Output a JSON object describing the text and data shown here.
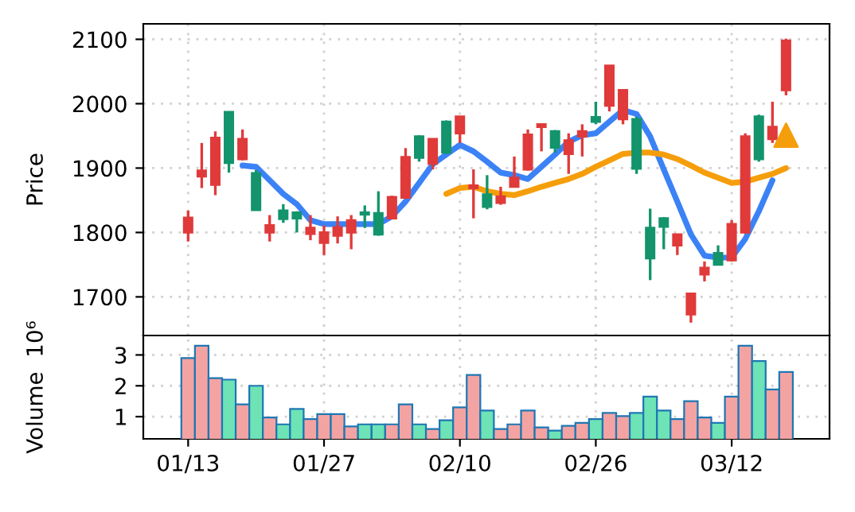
{
  "chart_data": [
    {
      "type": "candlestick",
      "ylabel": "Price",
      "categories": [
        null,
        null,
        null,
        null,
        null,
        null,
        null,
        null,
        null,
        null,
        null,
        null,
        null,
        null,
        null,
        null,
        null,
        null,
        null,
        null,
        null,
        null,
        null,
        null,
        null,
        null,
        null,
        null,
        null,
        null,
        null,
        null,
        null,
        null,
        null,
        null,
        null,
        null,
        null,
        null,
        null,
        null,
        null,
        null,
        null
      ],
      "ohlc": [
        [
          1800,
          1834,
          1786,
          1823
        ],
        [
          1887,
          1939,
          1869,
          1896
        ],
        [
          1874,
          1957,
          1858,
          1947
        ],
        [
          1987,
          1987,
          1893,
          1908
        ],
        [
          1914,
          1960,
          1912,
          1945
        ],
        [
          1892,
          1897,
          1835,
          1835
        ],
        [
          1800,
          1827,
          1786,
          1811
        ],
        [
          1834,
          1844,
          1815,
          1821
        ],
        [
          1831,
          1833,
          1800,
          1822
        ],
        [
          1798,
          1827,
          1788,
          1807
        ],
        [
          1784,
          1811,
          1765,
          1800
        ],
        [
          1795,
          1825,
          1783,
          1808
        ],
        [
          1800,
          1827,
          1774,
          1819
        ],
        [
          1831,
          1842,
          1807,
          1828
        ],
        [
          1830,
          1864,
          1795,
          1797
        ],
        [
          1822,
          1857,
          1822,
          1855
        ],
        [
          1854,
          1931,
          1852,
          1917
        ],
        [
          1949,
          1951,
          1910,
          1916
        ],
        [
          1907,
          1945,
          1898,
          1945
        ],
        [
          1972,
          1974,
          1922,
          1924
        ],
        [
          1954,
          1980,
          1939,
          1980
        ],
        [
          1869,
          1898,
          1822,
          1873
        ],
        [
          1859,
          1889,
          1836,
          1840
        ],
        [
          1846,
          1871,
          1843,
          1856
        ],
        [
          1871,
          1918,
          1871,
          1885
        ],
        [
          1898,
          1960,
          1896,
          1952
        ],
        [
          1964,
          1968,
          1926,
          1968
        ],
        [
          1957,
          1959,
          1924,
          1932
        ],
        [
          1922,
          1954,
          1891,
          1943
        ],
        [
          1949,
          1968,
          1918,
          1957
        ],
        [
          1979,
          2003,
          1968,
          1972
        ],
        [
          1997,
          2059,
          1988,
          2059
        ],
        [
          1976,
          2021,
          1968,
          2021
        ],
        [
          1976,
          1980,
          1891,
          1899
        ],
        [
          1807,
          1837,
          1726,
          1760
        ],
        [
          1822,
          1824,
          1774,
          1809
        ],
        [
          1780,
          1798,
          1765,
          1797
        ],
        [
          1673,
          1705,
          1660,
          1705
        ],
        [
          1735,
          1755,
          1724,
          1745
        ],
        [
          1768,
          1780,
          1749,
          1750
        ],
        [
          1757,
          1819,
          1755,
          1813
        ],
        [
          1800,
          1954,
          1798,
          1949
        ],
        [
          1980,
          1983,
          1910,
          1914
        ],
        [
          1945,
          2003,
          1939,
          1964
        ],
        [
          2021,
          2101,
          2013,
          2098
        ]
      ],
      "colors": [
        "#e03a3a",
        "#e03a3a",
        "#e03a3a",
        "#13946c",
        "#e03a3a",
        "#13946c",
        "#e03a3a",
        "#13946c",
        "#13946c",
        "#e03a3a",
        "#e03a3a",
        "#e03a3a",
        "#e03a3a",
        "#13946c",
        "#13946c",
        "#e03a3a",
        "#e03a3a",
        "#13946c",
        "#e03a3a",
        "#13946c",
        "#e03a3a",
        "#e03a3a",
        "#13946c",
        "#e03a3a",
        "#e03a3a",
        "#e03a3a",
        "#e03a3a",
        "#13946c",
        "#e03a3a",
        "#e03a3a",
        "#13946c",
        "#e03a3a",
        "#e03a3a",
        "#13946c",
        "#13946c",
        "#13946c",
        "#e03a3a",
        "#e03a3a",
        "#e03a3a",
        "#13946c",
        "#e03a3a",
        "#e03a3a",
        "#13946c",
        "#e03a3a",
        "#e03a3a"
      ],
      "series": [
        {
          "type": "line",
          "color": "#3b82f6",
          "values": [
            null,
            null,
            null,
            null,
            1904,
            1902,
            1881,
            1860,
            1844,
            1819,
            1813,
            1813,
            1813,
            1813,
            1813,
            1825,
            1848,
            1877,
            1906,
            1921,
            1936,
            1926,
            1910,
            1893,
            1889,
            1883,
            1902,
            1921,
            1941,
            1951,
            1954,
            1972,
            1990,
            1984,
            1949,
            1898,
            1848,
            1797,
            1764,
            1761,
            1761,
            1790,
            1833,
            1881,
            null
          ]
        },
        {
          "type": "line",
          "color": "#f59e0b",
          "values": [
            null,
            null,
            null,
            null,
            null,
            null,
            null,
            null,
            null,
            null,
            null,
            null,
            null,
            null,
            null,
            null,
            null,
            null,
            null,
            1860,
            1869,
            1871,
            1864,
            1860,
            1858,
            1864,
            1871,
            1877,
            1883,
            1891,
            1902,
            1912,
            1922,
            1924,
            1924,
            1921,
            1914,
            1904,
            1893,
            1885,
            1877,
            1879,
            1885,
            1891,
            1900
          ]
        },
        {
          "type": "scatter",
          "color": "#f59e0b",
          "marker": "triangle",
          "values": [
            null,
            null,
            null,
            null,
            null,
            null,
            null,
            null,
            null,
            null,
            null,
            null,
            null,
            null,
            null,
            null,
            null,
            null,
            null,
            null,
            null,
            null,
            null,
            null,
            null,
            null,
            null,
            null,
            null,
            null,
            null,
            null,
            null,
            null,
            null,
            null,
            null,
            null,
            null,
            null,
            null,
            null,
            null,
            null,
            1951
          ]
        }
      ],
      "ylim": [
        1640,
        2124
      ],
      "yticks": [
        1700,
        1800,
        1900,
        2000,
        2100
      ],
      "grid": true,
      "tick_labels": "y"
    },
    {
      "type": "bar",
      "ylabel": "Volume  10⁶",
      "categories": [
        "01/13",
        null,
        null,
        null,
        null,
        null,
        null,
        null,
        null,
        null,
        "01/27",
        null,
        null,
        null,
        null,
        null,
        null,
        null,
        null,
        null,
        "02/10",
        null,
        null,
        null,
        null,
        null,
        null,
        null,
        null,
        null,
        "02/26",
        null,
        null,
        null,
        null,
        null,
        null,
        null,
        null,
        null,
        "03/12",
        null,
        null,
        null,
        null
      ],
      "values": [
        2.9,
        3.3,
        2.25,
        2.2,
        1.4,
        2.0,
        0.97,
        0.75,
        1.25,
        0.92,
        1.08,
        1.08,
        0.68,
        0.75,
        0.75,
        0.75,
        1.4,
        0.75,
        0.6,
        0.88,
        1.3,
        2.35,
        1.2,
        0.6,
        0.75,
        1.2,
        0.65,
        0.55,
        0.7,
        0.8,
        0.92,
        1.12,
        1.02,
        1.12,
        1.65,
        1.2,
        0.92,
        1.5,
        0.97,
        0.8,
        1.65,
        3.3,
        2.8,
        1.88,
        2.45
      ],
      "colors": [
        "#f4a3a3",
        "#f4a3a3",
        "#f4a3a3",
        "#6de3b6",
        "#f4a3a3",
        "#6de3b6",
        "#f4a3a3",
        "#6de3b6",
        "#6de3b6",
        "#f4a3a3",
        "#f4a3a3",
        "#f4a3a3",
        "#f4a3a3",
        "#6de3b6",
        "#6de3b6",
        "#f4a3a3",
        "#f4a3a3",
        "#6de3b6",
        "#f4a3a3",
        "#6de3b6",
        "#f4a3a3",
        "#f4a3a3",
        "#6de3b6",
        "#f4a3a3",
        "#f4a3a3",
        "#f4a3a3",
        "#f4a3a3",
        "#6de3b6",
        "#f4a3a3",
        "#f4a3a3",
        "#6de3b6",
        "#f4a3a3",
        "#f4a3a3",
        "#6de3b6",
        "#6de3b6",
        "#6de3b6",
        "#f4a3a3",
        "#f4a3a3",
        "#f4a3a3",
        "#6de3b6",
        "#f4a3a3",
        "#f4a3a3",
        "#6de3b6",
        "#f4a3a3",
        "#f4a3a3"
      ],
      "ylim": [
        0.28,
        3.63
      ],
      "yticks": [
        1,
        2,
        3
      ],
      "grid": true
    }
  ]
}
